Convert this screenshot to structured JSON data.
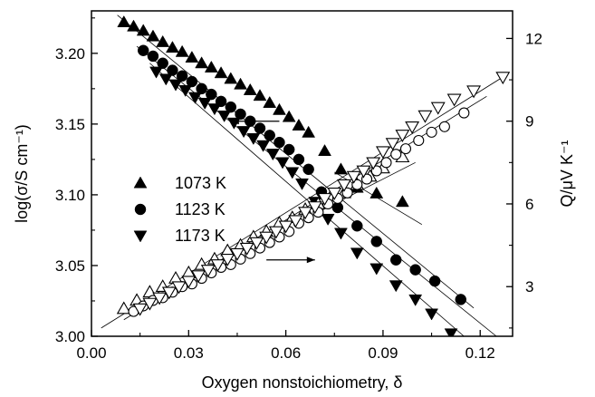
{
  "chart_data": {
    "type": "scatter",
    "xlabel": "Oxygen nonstoichiometry, δ",
    "ylabel_left": "log(σ/S cm⁻¹)",
    "ylabel_right": "Q/μV K⁻¹",
    "xlim": [
      0.0,
      0.13
    ],
    "ylim_left": [
      3.0,
      3.23
    ],
    "ylim_right": [
      1.2,
      13.0
    ],
    "x_ticks": [
      "0.00",
      "0.03",
      "0.06",
      "0.09",
      "0.12"
    ],
    "y_left_ticks": [
      "3.00",
      "3.05",
      "3.10",
      "3.15",
      "3.20"
    ],
    "y_right_ticks": [
      "3",
      "6",
      "9",
      "12"
    ],
    "legend": {
      "placement": "center-left",
      "entries": [
        {
          "label": "1073 K",
          "marker": "triangle-up"
        },
        {
          "label": "1123 K",
          "marker": "circle"
        },
        {
          "label": "1173 K",
          "marker": "triangle-down"
        }
      ]
    },
    "series": [
      {
        "name": "1073 K",
        "axis": "left",
        "marker": "triangle-up",
        "filled": true,
        "x": [
          0.01,
          0.013,
          0.016,
          0.019,
          0.022,
          0.025,
          0.028,
          0.031,
          0.034,
          0.037,
          0.04,
          0.043,
          0.046,
          0.049,
          0.052,
          0.055,
          0.058,
          0.061,
          0.064,
          0.067,
          0.072,
          0.077,
          0.082,
          0.088,
          0.096
        ],
        "y": [
          3.222,
          3.219,
          3.216,
          3.212,
          3.208,
          3.204,
          3.201,
          3.197,
          3.193,
          3.19,
          3.186,
          3.182,
          3.178,
          3.174,
          3.17,
          3.165,
          3.16,
          3.155,
          3.149,
          3.144,
          3.131,
          3.118,
          3.105,
          3.101,
          3.095
        ]
      },
      {
        "name": "1123 K",
        "axis": "left",
        "marker": "circle",
        "filled": true,
        "x": [
          0.016,
          0.019,
          0.022,
          0.025,
          0.028,
          0.031,
          0.034,
          0.037,
          0.04,
          0.043,
          0.046,
          0.049,
          0.052,
          0.055,
          0.058,
          0.061,
          0.064,
          0.067,
          0.071,
          0.076,
          0.082,
          0.088,
          0.094,
          0.1,
          0.106,
          0.114
        ],
        "y": [
          3.202,
          3.198,
          3.193,
          3.188,
          3.184,
          3.18,
          3.175,
          3.171,
          3.166,
          3.162,
          3.157,
          3.152,
          3.147,
          3.142,
          3.137,
          3.132,
          3.125,
          3.118,
          3.102,
          3.091,
          3.078,
          3.067,
          3.054,
          3.047,
          3.039,
          3.026
        ]
      },
      {
        "name": "1173 K",
        "axis": "left",
        "marker": "triangle-down",
        "filled": true,
        "x": [
          0.02,
          0.023,
          0.026,
          0.029,
          0.032,
          0.035,
          0.038,
          0.041,
          0.044,
          0.047,
          0.05,
          0.053,
          0.056,
          0.059,
          0.062,
          0.065,
          0.069,
          0.073,
          0.077,
          0.082,
          0.088,
          0.094,
          0.1,
          0.105,
          0.111
        ],
        "y": [
          3.187,
          3.182,
          3.178,
          3.174,
          3.169,
          3.165,
          3.161,
          3.156,
          3.151,
          3.145,
          3.14,
          3.135,
          3.129,
          3.123,
          3.116,
          3.108,
          3.095,
          3.083,
          3.073,
          3.059,
          3.048,
          3.036,
          3.026,
          3.016,
          3.002
        ]
      },
      {
        "name": "1073 K",
        "axis": "right",
        "marker": "triangle-up",
        "filled": false,
        "x": [
          0.01,
          0.014,
          0.018,
          0.022,
          0.026,
          0.03,
          0.034,
          0.038,
          0.042,
          0.046,
          0.05,
          0.054,
          0.058,
          0.062,
          0.066,
          0.07,
          0.074,
          0.078,
          0.082,
          0.086,
          0.09,
          0.096
        ],
        "y": [
          2.2,
          2.5,
          2.8,
          3.0,
          3.3,
          3.5,
          3.8,
          4.0,
          4.3,
          4.5,
          4.8,
          5.0,
          5.3,
          5.5,
          5.8,
          6.0,
          6.3,
          6.4,
          6.7,
          7.0,
          7.3,
          7.7
        ]
      },
      {
        "name": "1123 K",
        "axis": "right",
        "marker": "circle",
        "filled": false,
        "x": [
          0.013,
          0.016,
          0.019,
          0.022,
          0.025,
          0.028,
          0.031,
          0.034,
          0.037,
          0.04,
          0.043,
          0.046,
          0.049,
          0.052,
          0.055,
          0.058,
          0.061,
          0.064,
          0.067,
          0.07,
          0.073,
          0.076,
          0.079,
          0.082,
          0.085,
          0.088,
          0.091,
          0.094,
          0.097,
          0.101,
          0.105,
          0.109,
          0.115
        ],
        "y": [
          2.1,
          2.3,
          2.5,
          2.6,
          2.8,
          3.0,
          3.1,
          3.3,
          3.5,
          3.7,
          3.8,
          4.0,
          4.2,
          4.4,
          4.6,
          4.8,
          5.0,
          5.3,
          5.5,
          5.7,
          6.0,
          6.2,
          6.4,
          6.7,
          6.9,
          7.2,
          7.5,
          7.8,
          8.0,
          8.3,
          8.6,
          8.8,
          9.3
        ]
      },
      {
        "name": "1173 K",
        "axis": "right",
        "marker": "triangle-down",
        "filled": false,
        "x": [
          0.015,
          0.018,
          0.021,
          0.024,
          0.027,
          0.03,
          0.033,
          0.036,
          0.039,
          0.042,
          0.045,
          0.048,
          0.051,
          0.054,
          0.057,
          0.06,
          0.063,
          0.066,
          0.069,
          0.072,
          0.075,
          0.078,
          0.081,
          0.084,
          0.087,
          0.09,
          0.093,
          0.096,
          0.099,
          0.103,
          0.107,
          0.112,
          0.118,
          0.127
        ],
        "y": [
          2.2,
          2.4,
          2.6,
          2.8,
          3.0,
          3.2,
          3.4,
          3.6,
          3.8,
          4.0,
          4.2,
          4.4,
          4.6,
          4.8,
          5.0,
          5.2,
          5.4,
          5.7,
          5.9,
          6.2,
          6.4,
          6.7,
          7.0,
          7.2,
          7.5,
          7.9,
          8.2,
          8.5,
          8.8,
          9.2,
          9.5,
          9.8,
          10.1,
          10.6
        ]
      }
    ],
    "fit_lines": [
      {
        "axis": "left",
        "x": [
          0.008,
          0.118
        ],
        "y": [
          3.227,
          3.02
        ]
      },
      {
        "axis": "left",
        "x": [
          0.014,
          0.125
        ],
        "y": [
          3.205,
          3.0
        ]
      },
      {
        "axis": "left",
        "x": [
          0.018,
          0.115
        ],
        "y": [
          3.193,
          3.0
        ]
      },
      {
        "axis": "left",
        "x": [
          0.075,
          0.102
        ],
        "y": [
          3.116,
          3.079
        ]
      },
      {
        "axis": "right",
        "x": [
          0.003,
          0.127
        ],
        "y": [
          1.5,
          10.6
        ]
      },
      {
        "axis": "right",
        "x": [
          0.01,
          0.122
        ],
        "y": [
          1.8,
          9.9
        ]
      },
      {
        "axis": "right",
        "x": [
          0.07,
          0.1
        ],
        "y": [
          5.7,
          7.5
        ]
      }
    ],
    "annotations": [
      {
        "type": "arrow",
        "direction": "left",
        "points_to": "left-axis",
        "x": [
          0.058,
          0.043
        ],
        "y_axis": "left",
        "y": 3.152
      },
      {
        "type": "arrow",
        "direction": "right",
        "points_to": "right-axis",
        "x": [
          0.054,
          0.069
        ],
        "y_axis": "left",
        "y": 3.054
      }
    ]
  }
}
